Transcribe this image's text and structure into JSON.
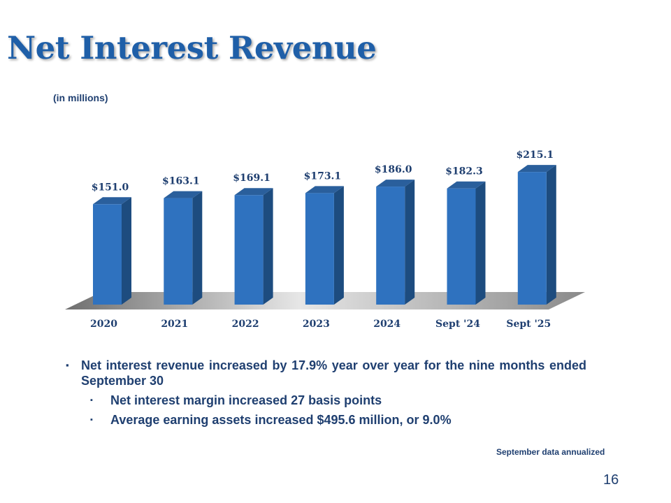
{
  "slide": {
    "title": "Net Interest Revenue",
    "subtitle": "(in millions)",
    "footnote": "September data annualized",
    "page_number": "16"
  },
  "bullets": {
    "main": "Net interest revenue increased by 17.9% year over year for the nine months ended September 30",
    "sub": [
      "Net interest margin increased 27 basis points",
      "Average earning assets increased $495.6 million,  or 9.0%"
    ],
    "main_marker": "▪",
    "sub_marker": "▪"
  },
  "chart_data": {
    "type": "bar",
    "title": "Net Interest Revenue",
    "ylabel": "(in millions)",
    "xlabel": "",
    "categories": [
      "2020",
      "2021",
      "2022",
      "2023",
      "2024",
      "Sept '24",
      "Sept '25"
    ],
    "values": [
      151.0,
      163.1,
      169.1,
      173.1,
      186.0,
      182.3,
      215.1
    ],
    "data_labels": [
      "$151.0",
      "$163.1",
      "$169.1",
      "$173.1",
      "$186.0",
      "$182.3",
      "$215.1"
    ],
    "ylim": [
      0,
      215.1
    ],
    "grid": false,
    "style": "3d-column"
  },
  "colors": {
    "bar_front": "#2f72bf",
    "bar_side": "#1d4c7f",
    "bar_top": "#2a5f9c",
    "text_primary": "#1f3f70",
    "title": "#1f5fa8"
  }
}
